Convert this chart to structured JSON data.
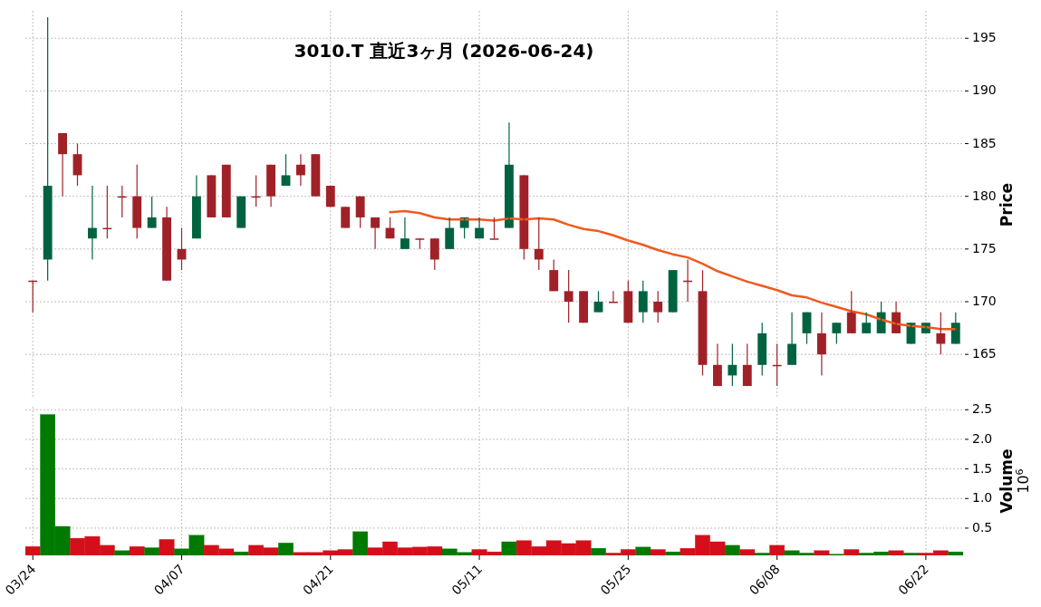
{
  "chart_data": [
    {
      "type": "candlestick",
      "title": "3010.T  直近3ヶ月  (2026-06-24)",
      "ylabel": "Price",
      "categories": [
        null,
        null,
        null,
        null,
        null,
        null,
        null,
        null,
        null,
        null,
        null,
        null,
        null,
        null,
        null,
        null,
        null,
        null,
        null,
        null,
        null,
        null,
        null,
        null,
        null,
        null,
        null,
        null,
        null,
        null,
        null,
        null,
        null,
        null,
        null,
        null,
        null,
        null,
        null,
        null,
        null,
        null,
        null,
        null,
        null,
        null,
        null,
        null,
        null,
        null,
        null,
        null,
        null,
        null,
        null,
        null,
        null,
        null,
        null,
        null,
        null,
        null,
        null
      ],
      "ohlc": [
        [
          172,
          172,
          169,
          172
        ],
        [
          174,
          197,
          172,
          181
        ],
        [
          186,
          186,
          180,
          184
        ],
        [
          184,
          185,
          181,
          182
        ],
        [
          176,
          181,
          174,
          177
        ],
        [
          177,
          181,
          176,
          177
        ],
        [
          180,
          181,
          178,
          180
        ],
        [
          180,
          183,
          176,
          177
        ],
        [
          177,
          180,
          177,
          178
        ],
        [
          178,
          179,
          172,
          172
        ],
        [
          175,
          177,
          173,
          174
        ],
        [
          176,
          182,
          176,
          180
        ],
        [
          182,
          182,
          178,
          178
        ],
        [
          183,
          183,
          178,
          178
        ],
        [
          177,
          180,
          177,
          180
        ],
        [
          180,
          182,
          179,
          180
        ],
        [
          183,
          183,
          179,
          180
        ],
        [
          181,
          184,
          181,
          182
        ],
        [
          183,
          184,
          181,
          182
        ],
        [
          184,
          184,
          180,
          180
        ],
        [
          181,
          181,
          179,
          179
        ],
        [
          179,
          179,
          177,
          177
        ],
        [
          180,
          180,
          177,
          178
        ],
        [
          178,
          178,
          175,
          177
        ],
        [
          177,
          178,
          176,
          176
        ],
        [
          175,
          178,
          175,
          176
        ],
        [
          176,
          176,
          175,
          176
        ],
        [
          176,
          176,
          173,
          174
        ],
        [
          175,
          178,
          175,
          177
        ],
        [
          177,
          178,
          176,
          178
        ],
        [
          176,
          178,
          176,
          177
        ],
        [
          176,
          178,
          176,
          176
        ],
        [
          177,
          187,
          177,
          183
        ],
        [
          182,
          182,
          174,
          175
        ],
        [
          175,
          178,
          173,
          174
        ],
        [
          173,
          174,
          171,
          171
        ],
        [
          171,
          173,
          168,
          170
        ],
        [
          171,
          171,
          168,
          168
        ],
        [
          169,
          171,
          169,
          170
        ],
        [
          170,
          171,
          170,
          170
        ],
        [
          171,
          172,
          168,
          168
        ],
        [
          169,
          172,
          168,
          171
        ],
        [
          170,
          171,
          168,
          169
        ],
        [
          169,
          173,
          169,
          173
        ],
        [
          172,
          174,
          170,
          172
        ],
        [
          171,
          173,
          163,
          164
        ],
        [
          164,
          166,
          162,
          162
        ],
        [
          163,
          166,
          162,
          164
        ],
        [
          164,
          166,
          162,
          162
        ],
        [
          164,
          168,
          163,
          167
        ],
        [
          164,
          166,
          162,
          164
        ],
        [
          164,
          169,
          164,
          166
        ],
        [
          167,
          169,
          166,
          169
        ],
        [
          167,
          169,
          163,
          165
        ],
        [
          167,
          168,
          166,
          168
        ],
        [
          169,
          171,
          167,
          167
        ],
        [
          167,
          169,
          167,
          168
        ],
        [
          167,
          170,
          167,
          169
        ],
        [
          169,
          170,
          167,
          167
        ],
        [
          166,
          168,
          166,
          168
        ],
        [
          167,
          168,
          167,
          168
        ],
        [
          167,
          169,
          165,
          166
        ],
        [
          166,
          169,
          166,
          168
        ]
      ],
      "colors": [
        "#a02128",
        "#006340",
        "#a02128",
        "#a02128",
        "#006340",
        "#a02128",
        "#a02128",
        "#a02128",
        "#006340",
        "#a02128",
        "#a02128",
        "#006340",
        "#a02128",
        "#a02128",
        "#006340",
        "#a02128",
        "#a02128",
        "#006340",
        "#a02128",
        "#a02128",
        "#a02128",
        "#a02128",
        "#a02128",
        "#a02128",
        "#a02128",
        "#006340",
        "#a02128",
        "#a02128",
        "#006340",
        "#006340",
        "#006340",
        "#a02128",
        "#006340",
        "#a02128",
        "#a02128",
        "#a02128",
        "#a02128",
        "#a02128",
        "#006340",
        "#a02128",
        "#a02128",
        "#006340",
        "#a02128",
        "#006340",
        "#a02128",
        "#a02128",
        "#a02128",
        "#006340",
        "#a02128",
        "#006340",
        "#a02128",
        "#006340",
        "#006340",
        "#a02128",
        "#006340",
        "#a02128",
        "#006340",
        "#006340",
        "#a02128",
        "#006340",
        "#006340",
        "#a02128",
        "#006340"
      ],
      "series": [
        {
          "type": "line",
          "color": "#f05a1e",
          "values": [
            null,
            null,
            null,
            null,
            null,
            null,
            null,
            null,
            null,
            null,
            null,
            null,
            null,
            null,
            null,
            null,
            null,
            null,
            null,
            null,
            null,
            null,
            null,
            null,
            178.5,
            178.6,
            178.4,
            178.0,
            177.8,
            177.8,
            177.8,
            177.7,
            177.9,
            177.8,
            177.9,
            177.8,
            177.3,
            176.9,
            176.7,
            176.3,
            175.8,
            175.4,
            174.9,
            174.5,
            174.2,
            173.6,
            172.9,
            172.4,
            171.9,
            171.5,
            171.1,
            170.6,
            170.4,
            169.9,
            169.5,
            169.1,
            168.8,
            168.3,
            167.9,
            167.7,
            167.6,
            167.4,
            167.4
          ]
        }
      ],
      "ylim": [
        160.8,
        197.6
      ],
      "yticks": [
        165,
        170,
        175,
        180,
        185,
        190,
        195
      ],
      "grid": true,
      "tick_labels": "y"
    },
    {
      "type": "bar",
      "ylabel": "Volume",
      "annotations": [
        "10$^{6}$"
      ],
      "categories": [
        "03/24",
        null,
        null,
        null,
        null,
        null,
        null,
        null,
        null,
        null,
        "04/07",
        null,
        null,
        null,
        null,
        null,
        null,
        null,
        null,
        null,
        "04/21",
        null,
        null,
        null,
        null,
        null,
        null,
        null,
        null,
        null,
        "05/11",
        null,
        null,
        null,
        null,
        null,
        null,
        null,
        null,
        null,
        "05/25",
        null,
        null,
        null,
        null,
        null,
        null,
        null,
        null,
        null,
        "06/08",
        null,
        null,
        null,
        null,
        null,
        null,
        null,
        null,
        null,
        "06/22",
        null,
        null
      ],
      "values": [
        0.19,
        2.42,
        0.53,
        0.33,
        0.36,
        0.21,
        0.12,
        0.19,
        0.17,
        0.31,
        0.15,
        0.38,
        0.21,
        0.15,
        0.1,
        0.21,
        0.17,
        0.25,
        0.09,
        0.09,
        0.12,
        0.14,
        0.44,
        0.17,
        0.27,
        0.17,
        0.18,
        0.19,
        0.15,
        0.09,
        0.14,
        0.1,
        0.27,
        0.29,
        0.19,
        0.29,
        0.24,
        0.29,
        0.16,
        0.08,
        0.14,
        0.18,
        0.14,
        0.1,
        0.16,
        0.38,
        0.27,
        0.21,
        0.14,
        0.08,
        0.21,
        0.12,
        0.08,
        0.12,
        0.06,
        0.14,
        0.08,
        0.1,
        0.12,
        0.08,
        0.08,
        0.12,
        0.1
      ],
      "colors": [
        "#d40f1a",
        "#007a00",
        "#007a00",
        "#d40f1a",
        "#d40f1a",
        "#d40f1a",
        "#007a00",
        "#d40f1a",
        "#007a00",
        "#d40f1a",
        "#007a00",
        "#007a00",
        "#d40f1a",
        "#d40f1a",
        "#007a00",
        "#d40f1a",
        "#d40f1a",
        "#007a00",
        "#d40f1a",
        "#d40f1a",
        "#d40f1a",
        "#d40f1a",
        "#007a00",
        "#d40f1a",
        "#d40f1a",
        "#d40f1a",
        "#d40f1a",
        "#d40f1a",
        "#007a00",
        "#007a00",
        "#d40f1a",
        "#d40f1a",
        "#007a00",
        "#d40f1a",
        "#d40f1a",
        "#d40f1a",
        "#d40f1a",
        "#d40f1a",
        "#007a00",
        "#d40f1a",
        "#d40f1a",
        "#007a00",
        "#d40f1a",
        "#007a00",
        "#d40f1a",
        "#d40f1a",
        "#d40f1a",
        "#007a00",
        "#d40f1a",
        "#007a00",
        "#d40f1a",
        "#007a00",
        "#007a00",
        "#d40f1a",
        "#007a00",
        "#d40f1a",
        "#007a00",
        "#007a00",
        "#d40f1a",
        "#007a00",
        "#d40f1a",
        "#d40f1a",
        "#007a00"
      ],
      "ylim": [
        0.04,
        2.55
      ],
      "yticks": [
        0.5,
        {
          "value": 1,
          "label": "1.0"
        },
        1.5,
        {
          "value": 2,
          "label": "2.0"
        },
        2.5
      ],
      "grid": true
    }
  ]
}
